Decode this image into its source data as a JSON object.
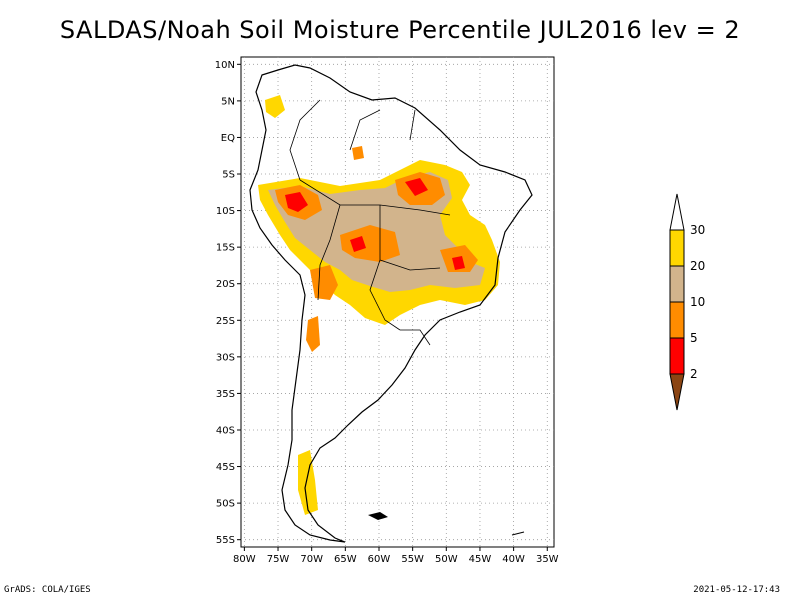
{
  "title": "SALDAS/Noah Soil Moisture Percentile JUL2016 lev = 2",
  "map": {
    "lat_ticks": [
      "10N",
      "5N",
      "EQ",
      "5S",
      "10S",
      "15S",
      "20S",
      "25S",
      "30S",
      "35S",
      "40S",
      "45S",
      "50S",
      "55S"
    ],
    "lon_ticks": [
      "80W",
      "75W",
      "70W",
      "65W",
      "60W",
      "55W",
      "50W",
      "45W",
      "40W",
      "35W"
    ],
    "lon_range": [
      -80.5,
      -34
    ],
    "lat_range": [
      -56,
      11
    ],
    "grid": true,
    "region": "South America"
  },
  "legend": {
    "labels": [
      "2",
      "5",
      "10",
      "20",
      "30"
    ],
    "colors": [
      "#8B4513",
      "#FF0000",
      "#FF8C00",
      "#D2B48C",
      "#FFD700",
      "#FFFFFF"
    ],
    "placement": "right"
  },
  "footer": {
    "left": "GrADS: COLA/IGES",
    "right": "2021-05-12-17:43"
  }
}
